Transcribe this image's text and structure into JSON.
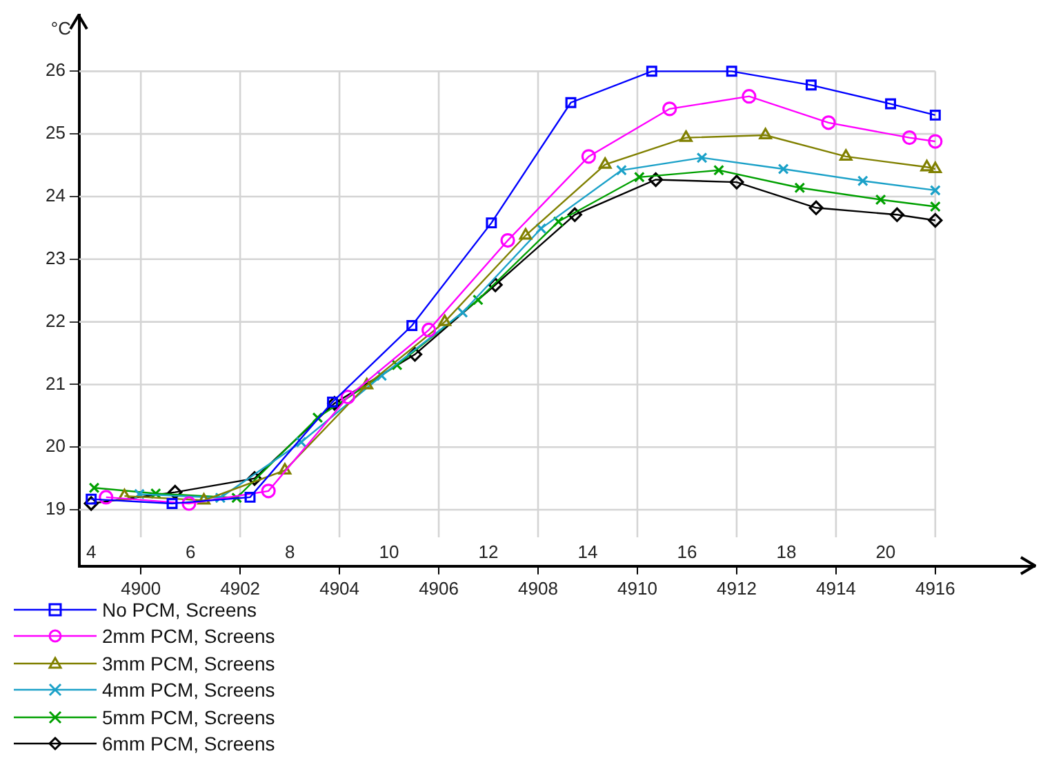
{
  "chart_data": {
    "type": "line",
    "ylabel": "°C",
    "xlim": [
      4898.76,
      4918
    ],
    "xticks": [
      4900,
      4902,
      4904,
      4906,
      4908,
      4910,
      4912,
      4914,
      4916
    ],
    "x2lim": [
      3.76,
      23
    ],
    "x2ticks": [
      4,
      6,
      8,
      10,
      12,
      14,
      16,
      18,
      20
    ],
    "ylim": [
      18.1,
      26.9
    ],
    "yticks": [
      19,
      20,
      21,
      22,
      23,
      24,
      25,
      26
    ],
    "grid": true,
    "legend": "bottom left",
    "series": [
      {
        "name": "No PCM, Screens",
        "color": "#0000ff",
        "marker": "square",
        "x": [
          4899,
          4900.63,
          4902.2,
          4903.86,
          4905.46,
          4907.06,
          4908.66,
          4910.29,
          4911.9,
          4913.5,
          4915.1,
          4916
        ],
        "values": [
          19.17,
          19.1,
          19.2,
          20.72,
          21.94,
          23.58,
          25.5,
          26.0,
          26.0,
          25.78,
          25.48,
          25.3
        ]
      },
      {
        "name": "2mm PCM, Screens",
        "color": "#ff00ff",
        "marker": "circle",
        "x": [
          4899.3,
          4900.97,
          4902.57,
          4904.17,
          4905.8,
          4907.39,
          4909.02,
          4910.65,
          4912.25,
          4913.85,
          4915.48,
          4916
        ],
        "values": [
          19.2,
          19.1,
          19.3,
          20.8,
          21.87,
          23.3,
          24.64,
          25.4,
          25.6,
          25.18,
          24.94,
          24.88
        ]
      },
      {
        "name": "3mm PCM, Screens",
        "color": "#808000",
        "marker": "triangle",
        "x": [
          4899.67,
          4901.27,
          4902.9,
          4904.55,
          4906.12,
          4907.75,
          4909.35,
          4910.98,
          4912.58,
          4914.2,
          4915.83,
          4916
        ],
        "values": [
          19.22,
          19.15,
          19.63,
          20.99,
          22.0,
          23.38,
          24.51,
          24.94,
          24.98,
          24.64,
          24.47,
          24.44
        ]
      },
      {
        "name": "4mm PCM, Screens",
        "color": "#1ba1c8",
        "marker": "cross",
        "x": [
          4899.97,
          4901.6,
          4903.23,
          4904.85,
          4906.48,
          4908.06,
          4909.68,
          4911.3,
          4912.94,
          4914.54,
          4916
        ],
        "values": [
          19.25,
          19.19,
          20.08,
          21.14,
          22.15,
          23.49,
          24.42,
          24.62,
          24.44,
          24.25,
          24.1
        ]
      },
      {
        "name": "5mm PCM, Screens",
        "color": "#00a000",
        "marker": "cross",
        "x": [
          4899.06,
          4900.3,
          4901.93,
          4903.56,
          4905.16,
          4906.79,
          4908.41,
          4910.04,
          4911.64,
          4913.27,
          4914.9,
          4916
        ],
        "values": [
          19.35,
          19.26,
          19.19,
          20.47,
          21.31,
          22.35,
          23.6,
          24.31,
          24.42,
          24.14,
          23.95,
          23.84
        ]
      },
      {
        "name": "6mm PCM, Screens",
        "color": "#000000",
        "marker": "diamond",
        "x": [
          4899,
          4900.69,
          4902.29,
          4903.9,
          4905.52,
          4907.14,
          4908.74,
          4910.37,
          4912.0,
          4913.6,
          4915.23,
          4916
        ],
        "values": [
          19.1,
          19.28,
          19.5,
          20.7,
          21.48,
          22.59,
          23.71,
          24.27,
          24.23,
          23.82,
          23.71,
          23.62
        ]
      }
    ]
  }
}
